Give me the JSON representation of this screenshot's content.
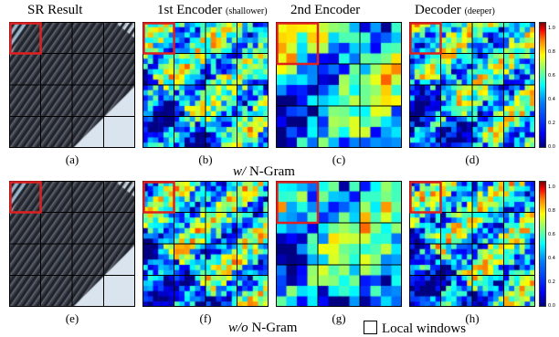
{
  "headers": {
    "sr": "SR Result",
    "enc1": "1st Encoder",
    "enc1_note": "(shallower)",
    "enc2": "2nd Encoder",
    "dec": "Decoder",
    "dec_note": "(deeper)"
  },
  "rows": [
    {
      "label_prefix": "w/",
      "label_suffix": "N-Gram",
      "captions": [
        "(a)",
        "(b)",
        "(c)",
        "(d)"
      ]
    },
    {
      "label_prefix": "w/o",
      "label_suffix": "N-Gram",
      "captions": [
        "(e)",
        "(f)",
        "(g)",
        "(h)"
      ]
    }
  ],
  "colorbar": {
    "ticks": [
      "1.0",
      "0.8",
      "0.6",
      "0.4",
      "0.2",
      "0.0"
    ],
    "colormap": "jet"
  },
  "legend": {
    "label": "Local windows"
  },
  "colors": {
    "window_grid": "#000000",
    "highlight_window": "#e02020"
  }
}
